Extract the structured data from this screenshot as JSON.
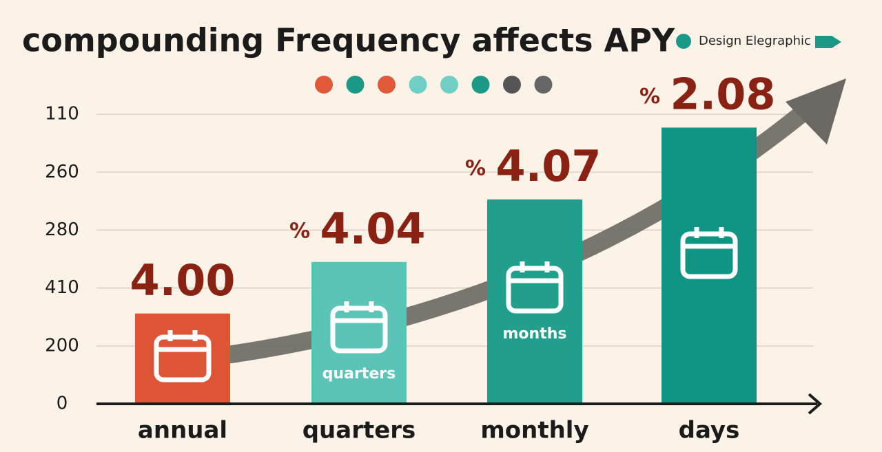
{
  "chart_data": {
    "type": "bar",
    "title": "compounding Frequency affects APY",
    "legend_label": "Design Elegraphic",
    "legend_color": "#1a9a86",
    "dot_colors": [
      "#e05a3a",
      "#1a9a86",
      "#e05a3a",
      "#6fcfc4",
      "#6fcfc4",
      "#1a9a86",
      "#555555",
      "#666666"
    ],
    "categories": [
      "annual",
      "quarters",
      "monthly",
      "days"
    ],
    "values": [
      1.56,
      2.45,
      3.53,
      4.77
    ],
    "colors": [
      "#dd5535",
      "#5bc4b7",
      "#20a08c",
      "#109484"
    ],
    "bar_labels": [
      "4.00",
      "4.04",
      "4.07",
      "2.08"
    ],
    "bar_label_prefix": [
      null,
      "%",
      "%",
      "%"
    ],
    "icon_labels": [
      null,
      "quarters",
      "months",
      null
    ],
    "ylim": [
      0,
      5.5
    ],
    "yticks": [
      0,
      {
        "value": 1,
        "label": "200"
      },
      {
        "value": 2,
        "label": "410"
      },
      {
        "value": 3,
        "label": "280"
      },
      {
        "value": 4,
        "label": "260"
      },
      {
        "value": 5,
        "label": "110"
      }
    ],
    "grid": true
  }
}
